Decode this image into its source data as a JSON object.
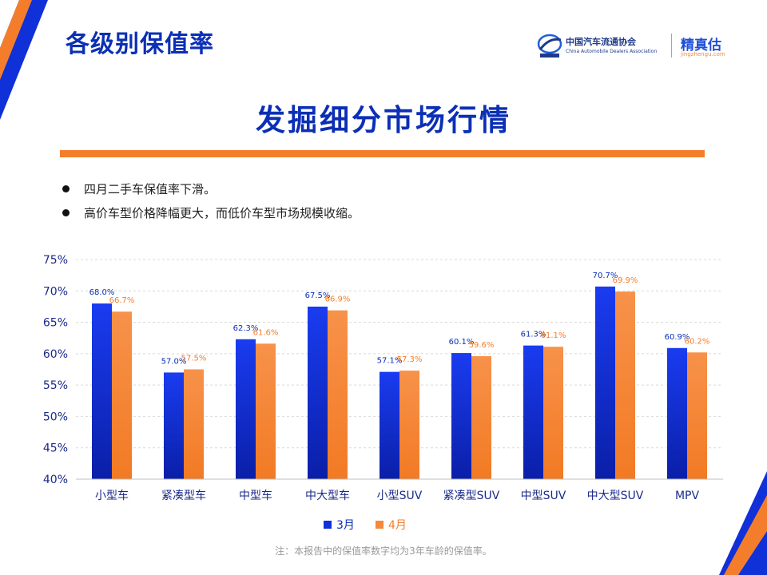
{
  "header": {
    "title": "各级别保值率",
    "cada_name_cn": "中国汽车流通协会",
    "cada_name_en": "China Automobile Dealers Association",
    "brand_cn": "精真估",
    "brand_url": "jingzhengu.com"
  },
  "headline": "发掘细分市场行情",
  "bullets": [
    "四月二手车保值率下滑。",
    "高价车型价格降幅更大，而低价车型市场规模收缩。"
  ],
  "footnote": "注：本报告中的保值率数字均为3年车龄的保值率。",
  "colors": {
    "brand_blue": "#0b2fb5",
    "accent_orange": "#f47d2c",
    "march_bar": "#1030d8",
    "april_bar": "#f5893a"
  },
  "chart_data": {
    "type": "bar",
    "categories": [
      "小型车",
      "紧凑型车",
      "中型车",
      "中大型车",
      "小型SUV",
      "紧凑型SUV",
      "中型SUV",
      "中大型SUV",
      "MPV"
    ],
    "series": [
      {
        "name": "3月",
        "values": [
          68.0,
          57.0,
          62.3,
          67.5,
          57.1,
          60.1,
          61.3,
          70.7,
          60.9
        ],
        "labels": [
          "68.0%",
          "57.0%",
          "62.3%",
          "67.5%",
          "57.1%",
          "60.1%",
          "61.3%",
          "70.7%",
          "60.9%"
        ]
      },
      {
        "name": "4月",
        "values": [
          66.7,
          57.5,
          61.6,
          66.9,
          57.3,
          59.6,
          61.1,
          69.9,
          60.2
        ],
        "labels": [
          "66.7%",
          "57.5%",
          "61.6%",
          "66.9%",
          "57.3%",
          "59.6%",
          "61.1%",
          "69.9%",
          "60.2%"
        ]
      }
    ],
    "ylim": [
      40,
      75
    ],
    "yticks": [
      {
        "value": 40,
        "label": "40%"
      },
      {
        "value": 45,
        "label": "45%"
      },
      {
        "value": 50,
        "label": "50%"
      },
      {
        "value": 55,
        "label": "55%"
      },
      {
        "value": 60,
        "label": "60%"
      },
      {
        "value": 65,
        "label": "65%"
      },
      {
        "value": 70,
        "label": "70%"
      },
      {
        "value": 75,
        "label": "75%"
      }
    ],
    "grid": true,
    "legend": "bottom-center"
  }
}
